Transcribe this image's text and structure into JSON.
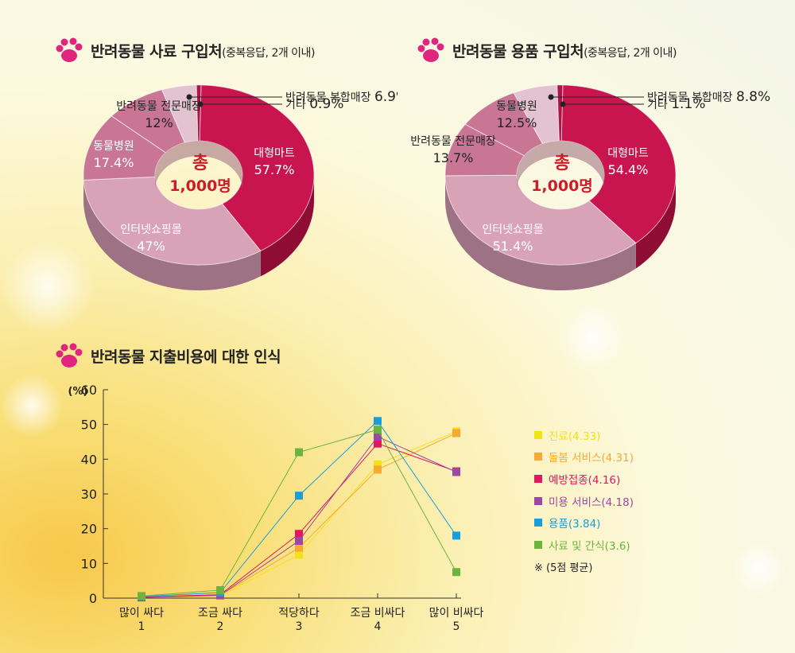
{
  "colors": {
    "paw": "#e0257f",
    "donut_main": "#c9154f",
    "donut_main_dark": "#8f0c35",
    "donut_light": "#d9a3b7",
    "donut_mid": "#c97695",
    "donut_pale": "#e3c3cf",
    "center_text": "#cc1b2a"
  },
  "headings": {
    "feed": {
      "main": "반려동물 사료 구입처",
      "sub": "(중복응답, 2개 이내)"
    },
    "goods": {
      "main": "반려동물 용품 구입처",
      "sub": "(중복응답, 2개 이내)"
    },
    "cost": {
      "main": "반려동물 지출비용에 대한 인식"
    }
  },
  "center": {
    "line1": "총",
    "line2": "1,000명"
  },
  "chart_data": [
    {
      "type": "pie",
      "title": "반려동물 사료 구입처(중복응답, 2개 이내)",
      "slices": [
        {
          "label": "대형마트",
          "value": 57.7,
          "value_label": "57.7%"
        },
        {
          "label": "인터넷쇼핑몰",
          "value": 47,
          "value_label": "47%"
        },
        {
          "label": "동물병원",
          "value": 17.4,
          "value_label": "17.4%"
        },
        {
          "label": "반려동물 전문매장",
          "value": 12,
          "value_label": "12%"
        },
        {
          "label": "반려동물 복합매장",
          "value": 6.9,
          "value_label": "6.9%"
        },
        {
          "label": "기타",
          "value": 0.9,
          "value_label": "0.9%"
        }
      ]
    },
    {
      "type": "pie",
      "title": "반려동물 용품 구입처(중복응답, 2개 이내)",
      "slices": [
        {
          "label": "대형마트",
          "value": 54.4,
          "value_label": "54.4%"
        },
        {
          "label": "인터넷쇼핑몰",
          "value": 51.4,
          "value_label": "51.4%"
        },
        {
          "label": "반려동물 전문매장",
          "value": 13.7,
          "value_label": "13.7%"
        },
        {
          "label": "동물병원",
          "value": 12.5,
          "value_label": "12.5%"
        },
        {
          "label": "반려동물 복합매장",
          "value": 8.8,
          "value_label": "8.8%"
        },
        {
          "label": "기타",
          "value": 1.1,
          "value_label": "1.1%"
        }
      ]
    },
    {
      "type": "line",
      "title": "반려동물 지출비용에 대한 인식",
      "ylabel": "(%)",
      "ylim": [
        0,
        60
      ],
      "yticks": [
        0,
        10,
        20,
        30,
        40,
        50,
        60
      ],
      "categories": [
        {
          "label": "많이 싸다",
          "num": "1"
        },
        {
          "label": "조금 싸다",
          "num": "2"
        },
        {
          "label": "적당하다",
          "num": "3"
        },
        {
          "label": "조금 비싸다",
          "num": "4"
        },
        {
          "label": "많이 비싸다",
          "num": "5"
        }
      ],
      "series": [
        {
          "name": "진료(4.33)",
          "color": "#f2e21a",
          "values": [
            0.2,
            0.6,
            12.5,
            38.5,
            48
          ]
        },
        {
          "name": "돌봄 서비스(4.31)",
          "color": "#f6a933",
          "values": [
            0.3,
            0.8,
            14.5,
            37,
            47.5
          ]
        },
        {
          "name": "예방접종(4.16)",
          "color": "#e2175f",
          "values": [
            0.3,
            1.0,
            18.5,
            44.5,
            36.5
          ]
        },
        {
          "name": "미용 서비스(4.18)",
          "color": "#9b47a3",
          "values": [
            0.2,
            0.8,
            16.5,
            46.5,
            36.3
          ]
        },
        {
          "name": "용품(3.84)",
          "color": "#199edb",
          "values": [
            0.5,
            1.6,
            29.5,
            51,
            18
          ]
        },
        {
          "name": "사료 및 간식(3.6)",
          "color": "#6cb33f",
          "values": [
            0.6,
            2.3,
            42,
            48.5,
            7.5
          ]
        }
      ],
      "note": "※ (5점 평균)"
    }
  ]
}
